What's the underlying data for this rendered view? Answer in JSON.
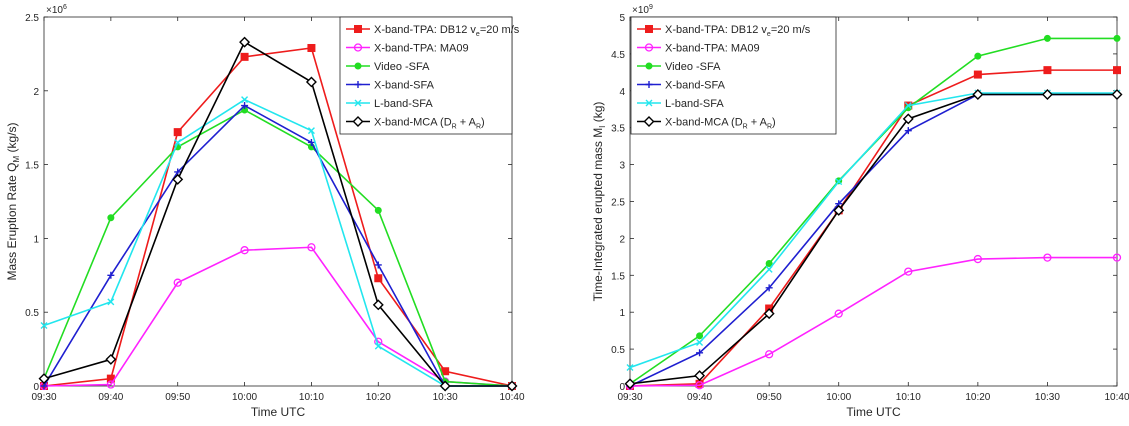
{
  "figure": {
    "xlabel": "Time UTC",
    "categories": [
      "09:30",
      "09:40",
      "09:50",
      "10:00",
      "10:10",
      "10:20",
      "10:30",
      "10:40"
    ]
  },
  "series_styles": [
    {
      "color": "#ee1c1c",
      "marker": "square"
    },
    {
      "color": "#ff22ff",
      "marker": "circle"
    },
    {
      "color": "#22dd22",
      "marker": "dot"
    },
    {
      "color": "#1f1fd0",
      "marker": "plus"
    },
    {
      "color": "#22e6ee",
      "marker": "x"
    },
    {
      "color": "#000000",
      "marker": "diamond"
    }
  ],
  "chart_data": [
    {
      "type": "line",
      "ylabel": "Mass Eruption Rate Q",
      "ylabel_sub": "M",
      "ylabel_unit": " (kg/s)",
      "ylim": [
        0,
        2.5
      ],
      "yticks": [
        "0",
        "0.5",
        "1",
        "1.5",
        "2",
        "2.5"
      ],
      "yexponent": "×10",
      "yexponent_power": "6",
      "legend_position": "top-right",
      "series": [
        {
          "name": "X-band-TPA: DB12 v",
          "name_sub": "e",
          "name_tail": "=20 m/s",
          "values": [
            0.0,
            0.05,
            1.72,
            2.23,
            2.29,
            0.73,
            0.1,
            0.0
          ]
        },
        {
          "name": "X-band-TPA: MA09",
          "name_sub": "",
          "name_tail": "",
          "values": [
            0.0,
            0.01,
            0.7,
            0.92,
            0.94,
            0.3,
            0.03,
            0.0
          ]
        },
        {
          "name": "Video -SFA",
          "name_sub": "",
          "name_tail": "",
          "values": [
            0.05,
            1.14,
            1.62,
            1.87,
            1.62,
            1.19,
            0.03,
            0.0
          ]
        },
        {
          "name": "X-band-SFA",
          "name_sub": "",
          "name_tail": "",
          "values": [
            0.0,
            0.75,
            1.45,
            1.9,
            1.65,
            0.82,
            0.0,
            0.0
          ]
        },
        {
          "name": "L-band-SFA",
          "name_sub": "",
          "name_tail": "",
          "values": [
            0.41,
            0.57,
            1.65,
            1.94,
            1.73,
            0.27,
            0.0,
            0.0
          ]
        },
        {
          "name": "X-band-MCA (D",
          "name_sub": "R",
          "name_tail": " + A",
          "name_sub2": "R",
          "name_tail2": ")",
          "values": [
            0.05,
            0.18,
            1.4,
            2.33,
            2.06,
            0.55,
            0.0,
            0.0
          ]
        }
      ]
    },
    {
      "type": "line",
      "ylabel": "Time-Integrated erupted mass M",
      "ylabel_sub": "I",
      "ylabel_unit": " (kg)",
      "ylim": [
        0,
        5
      ],
      "yticks": [
        "0",
        "0.5",
        "1",
        "1.5",
        "2",
        "2.5",
        "3",
        "3.5",
        "4",
        "4.5",
        "5"
      ],
      "yexponent": "×10",
      "yexponent_power": "9",
      "legend_position": "top-left",
      "series": [
        {
          "name": "X-band-TPA: DB12 v",
          "name_sub": "e",
          "name_tail": "=20 m/s",
          "values": [
            0.0,
            0.03,
            1.05,
            2.38,
            3.8,
            4.22,
            4.28,
            4.28
          ]
        },
        {
          "name": "X-band-TPA: MA09",
          "name_sub": "",
          "name_tail": "",
          "values": [
            0.0,
            0.01,
            0.43,
            0.98,
            1.55,
            1.72,
            1.74,
            1.74
          ]
        },
        {
          "name": "Video -SFA",
          "name_sub": "",
          "name_tail": "",
          "values": [
            0.03,
            0.68,
            1.66,
            2.78,
            3.77,
            4.47,
            4.71,
            4.71
          ]
        },
        {
          "name": "X-band-SFA",
          "name_sub": "",
          "name_tail": "",
          "values": [
            0.0,
            0.45,
            1.33,
            2.47,
            3.46,
            3.95,
            3.95,
            3.95
          ]
        },
        {
          "name": "L-band-SFA",
          "name_sub": "",
          "name_tail": "",
          "values": [
            0.25,
            0.59,
            1.58,
            2.77,
            3.8,
            3.97,
            3.97,
            3.97
          ]
        },
        {
          "name": "X-band-MCA (D",
          "name_sub": "R",
          "name_tail": " + A",
          "name_sub2": "R",
          "name_tail2": ")",
          "values": [
            0.03,
            0.14,
            0.98,
            2.38,
            3.62,
            3.95,
            3.95,
            3.95
          ]
        }
      ]
    }
  ]
}
